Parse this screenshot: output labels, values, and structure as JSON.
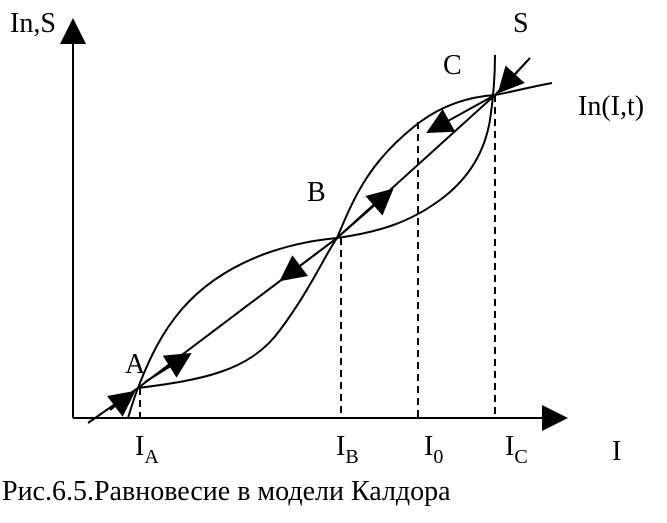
{
  "axes": {
    "y_label": "In,S",
    "x_label": "I"
  },
  "curves": {
    "saving": "S",
    "investment": "In(I,t)"
  },
  "points": {
    "a": "A",
    "b": "B",
    "c": "C"
  },
  "x_marks": [
    {
      "main": "I",
      "sub": "A"
    },
    {
      "main": "I",
      "sub": "B"
    },
    {
      "main": "I",
      "sub": "0"
    },
    {
      "main": "I",
      "sub": "C"
    }
  ],
  "caption": "Рис.6.5.Равновесие в модели Калдора"
}
